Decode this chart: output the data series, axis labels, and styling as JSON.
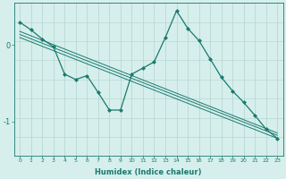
{
  "xlabel": "Humidex (Indice chaleur)",
  "background_color": "#d6efec",
  "grid_color": "#b8d8d4",
  "line_color": "#1a7a6e",
  "xlim": [
    -0.5,
    23.5
  ],
  "ylim": [
    -1.45,
    0.55
  ],
  "yticks": [
    0,
    -1
  ],
  "xticks": [
    0,
    1,
    2,
    3,
    4,
    5,
    6,
    7,
    8,
    9,
    10,
    11,
    12,
    13,
    14,
    15,
    16,
    17,
    18,
    19,
    20,
    21,
    22,
    23
  ],
  "series": [
    {
      "x": [
        0,
        1,
        2,
        3,
        4,
        5,
        6,
        7,
        8,
        9,
        10,
        11,
        12,
        13,
        14,
        15,
        16,
        17,
        18,
        19,
        20,
        21,
        22,
        23
      ],
      "y": [
        0.3,
        0.2,
        0.08,
        -0.02,
        -0.38,
        -0.45,
        -0.4,
        -0.62,
        -0.85,
        -0.85,
        -0.38,
        -0.3,
        -0.22,
        0.1,
        0.45,
        0.22,
        0.06,
        -0.18,
        -0.42,
        -0.6,
        -0.75,
        -0.92,
        -1.1,
        -1.22
      ],
      "marker": "D",
      "markersize": 2.0,
      "linewidth": 0.9
    },
    {
      "x": [
        0,
        23
      ],
      "y": [
        0.18,
        -1.15
      ],
      "marker": null,
      "linewidth": 0.7
    },
    {
      "x": [
        0,
        23
      ],
      "y": [
        0.14,
        -1.18
      ],
      "marker": null,
      "linewidth": 0.7
    },
    {
      "x": [
        0,
        23
      ],
      "y": [
        0.1,
        -1.22
      ],
      "marker": null,
      "linewidth": 0.7
    }
  ]
}
